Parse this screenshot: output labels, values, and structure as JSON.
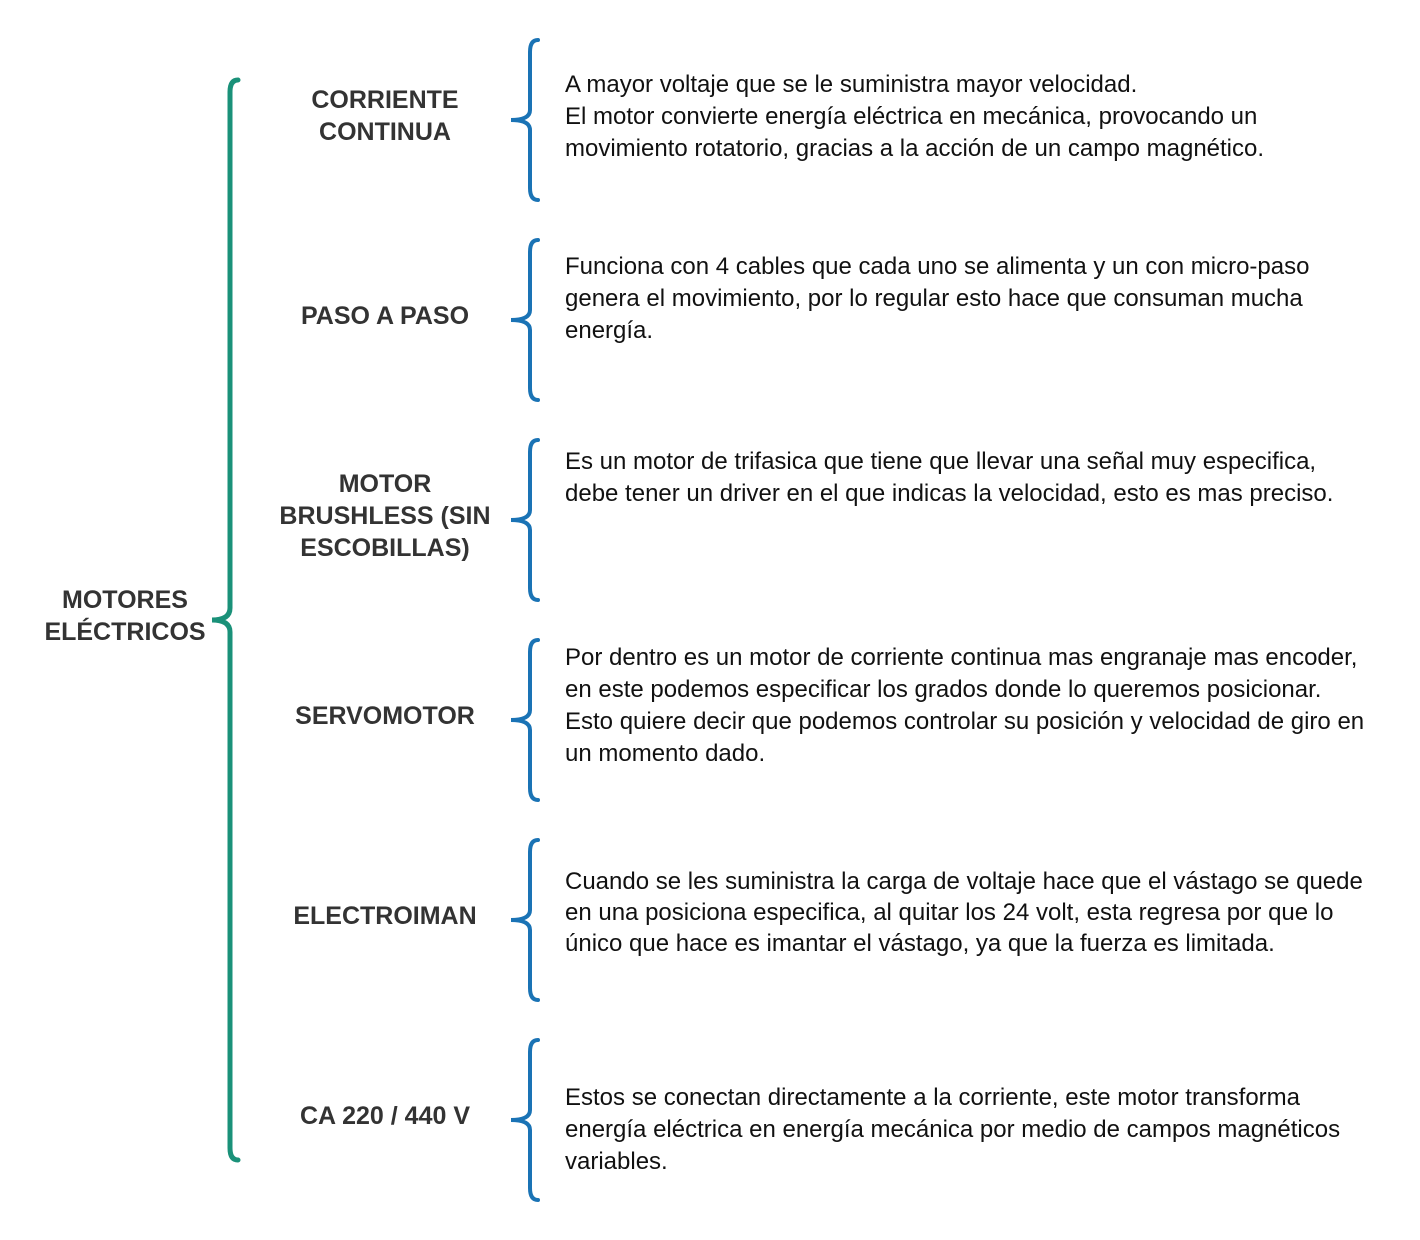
{
  "colors": {
    "main_brace": "#1a9179",
    "branch_brace": "#1a73b5",
    "label_text": "#333333",
    "desc_text": "#111111"
  },
  "root": {
    "label": "MOTORES\nELÉCTRICOS"
  },
  "branches": [
    {
      "label": "CORRIENTE\nCONTINUA",
      "description": "A mayor voltaje que se le suministra mayor velocidad.\nEl motor convierte energía eléctrica en mecánica, provocando un movimiento rotatorio, gracias a la acción de un campo magnético."
    },
    {
      "label": "PASO A PASO",
      "description": "Funciona con 4 cables que cada uno se alimenta y un con micro-paso genera el movimiento, por lo regular esto hace que consuman mucha energía."
    },
    {
      "label": "MOTOR\nBRUSHLESS (SIN\nESCOBILLAS)",
      "description": "Es un motor de trifasica que tiene que llevar una señal muy especifica, debe tener un driver en el que indicas la velocidad, esto es mas preciso."
    },
    {
      "label": "SERVOMOTOR",
      "description": "Por dentro es un motor de corriente continua mas engranaje mas encoder, en este podemos especificar los grados donde lo queremos posicionar.\n Esto quiere decir que podemos controlar su posición y velocidad de giro en un momento dado."
    },
    {
      "label": "ELECTROIMAN",
      "description": "Cuando se les suministra  la carga de voltaje  hace que  el vástago se quede en una posiciona especifica, al quitar los 24 volt, esta regresa por que lo único que hace es imantar el vástago, ya que la fuerza es limitada."
    },
    {
      "label": "CA 220 / 440 V",
      "description": "Estos se conectan directamente a la corriente,  este motor transforma energía eléctrica en energía mecánica por medio de campos magnéticos variables."
    }
  ]
}
